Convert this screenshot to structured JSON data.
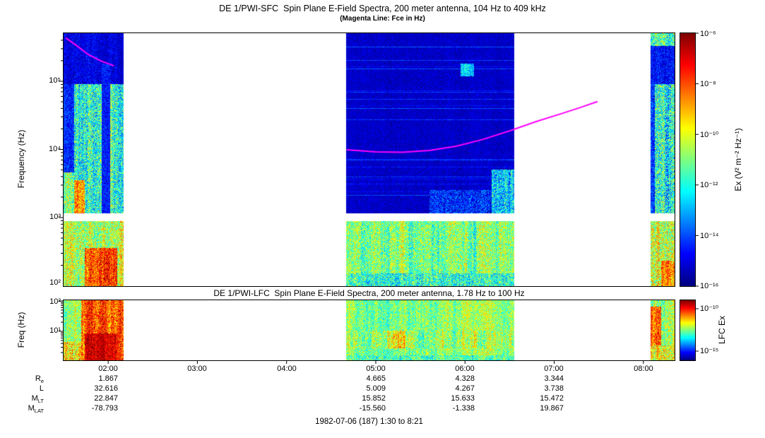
{
  "footer": {
    "text": "1982-07-06 (187) 1:30 to 8:21"
  },
  "xaxis": {
    "ticks": [
      "02:00",
      "03:00",
      "04:00",
      "05:00",
      "06:00",
      "07:00",
      "08:00"
    ],
    "tick_hours": [
      2,
      3,
      4,
      5,
      6,
      7,
      8
    ]
  },
  "ephemeris": {
    "value_hours": [
      2,
      5,
      6,
      7
    ],
    "rows": [
      {
        "label_main": "R",
        "label_sub": "e",
        "values": [
          "1.867",
          "4.665",
          "4.328",
          "3.344"
        ]
      },
      {
        "label_main": "L",
        "label_sub": "",
        "values": [
          "32.616",
          "5.009",
          "4.267",
          "3.738"
        ]
      },
      {
        "label_main": "M",
        "label_sub": "LT",
        "values": [
          "22.847",
          "15.852",
          "15.633",
          "15.472"
        ]
      },
      {
        "label_main": "M",
        "label_sub": "LAT",
        "values": [
          "-78.793",
          "-15.560",
          "-1.338",
          "19.867"
        ]
      }
    ]
  },
  "chart_data": [
    {
      "type": "heatmap",
      "title": "DE 1/PWI-SFC  Spin Plane E-Field Spectra, 200 meter antenna, 104 Hz to 409 kHz",
      "subtitle": "(Magenta Line: Fce in Hz)",
      "ylabel": "Frequency (Hz)",
      "yscale": "log",
      "ylim_hz": [
        100,
        409000
      ],
      "yticks": [
        "10⁵",
        "10⁴",
        "10³",
        "10²"
      ],
      "time_range": [
        "01:30",
        "08:21"
      ],
      "xlim_hours": [
        1.5,
        8.35
      ],
      "data_intervals_hours": [
        [
          1.5,
          2.17
        ],
        [
          4.67,
          6.55
        ],
        [
          8.08,
          8.35
        ]
      ],
      "colorbar": {
        "label": "Ex (V² m⁻² Hz⁻¹)",
        "scale": "log",
        "ticks": [
          "10⁻⁶",
          "10⁻⁸",
          "10⁻¹⁰",
          "10⁻¹²",
          "10⁻¹⁴",
          "10⁻¹⁶"
        ]
      },
      "fce_line": {
        "color": "#ff00ff",
        "width": 2,
        "segments": [
          [
            [
              1.53,
              0.02
            ],
            [
              1.65,
              0.05
            ],
            [
              1.78,
              0.085
            ],
            [
              1.92,
              0.11
            ],
            [
              2.06,
              0.128
            ]
          ],
          [
            [
              4.68,
              0.461
            ],
            [
              5.0,
              0.469
            ],
            [
              5.3,
              0.471
            ],
            [
              5.6,
              0.464
            ],
            [
              5.9,
              0.447
            ],
            [
              6.2,
              0.42
            ],
            [
              6.5,
              0.386
            ],
            [
              6.8,
              0.349
            ],
            [
              7.1,
              0.316
            ],
            [
              7.3,
              0.293
            ],
            [
              7.48,
              0.271
            ]
          ]
        ]
      },
      "patches": [
        {
          "t0": 1.5,
          "t1": 2.17,
          "y0": 0.0,
          "y1": 0.2,
          "v": 0.1,
          "n": 0.08,
          "cv": 0.5
        },
        {
          "t0": 1.5,
          "t1": 2.17,
          "y0": 0.2,
          "y1": 0.713,
          "v": 0.42,
          "n": 0.2,
          "cv": 0.5
        },
        {
          "t0": 1.5,
          "t1": 1.62,
          "y0": 0.2,
          "y1": 0.55,
          "v": 0.16,
          "n": 0.1,
          "cv": 0.3
        },
        {
          "t0": 1.93,
          "t1": 2.02,
          "y0": 0.12,
          "y1": 0.713,
          "v": 0.15,
          "n": 0.09,
          "cv": 0.2
        },
        {
          "t0": 1.62,
          "t1": 1.74,
          "y0": 0.58,
          "y1": 0.713,
          "v": 0.7,
          "n": 0.16,
          "cv": 0.3
        },
        {
          "t0": 1.5,
          "t1": 2.17,
          "y0": 0.743,
          "y1": 1.0,
          "v": 0.55,
          "n": 0.18,
          "cv": 0.4
        },
        {
          "t0": 1.74,
          "t1": 2.1,
          "y0": 0.85,
          "y1": 1.0,
          "v": 0.8,
          "n": 0.15,
          "cv": 0.3
        },
        {
          "t0": 4.67,
          "t1": 6.55,
          "y0": 0.0,
          "y1": 0.713,
          "v": 0.07,
          "n": 0.05,
          "cv": 0.25,
          "rs": 0.1
        },
        {
          "t0": 5.95,
          "t1": 6.1,
          "y0": 0.12,
          "y1": 0.17,
          "v": 0.33,
          "n": 0.12,
          "cv": 0.3
        },
        {
          "t0": 5.6,
          "t1": 6.55,
          "y0": 0.62,
          "y1": 0.713,
          "v": 0.16,
          "n": 0.14,
          "cv": 0.5
        },
        {
          "t0": 6.3,
          "t1": 6.55,
          "y0": 0.54,
          "y1": 0.713,
          "v": 0.34,
          "n": 0.18,
          "cv": 0.5
        },
        {
          "t0": 4.67,
          "t1": 6.55,
          "y0": 0.743,
          "y1": 1.0,
          "v": 0.5,
          "n": 0.16,
          "cv": 0.45
        },
        {
          "t0": 4.67,
          "t1": 6.55,
          "y0": 0.95,
          "y1": 1.0,
          "v": 0.42,
          "n": 0.18,
          "cv": 0.3
        },
        {
          "t0": 8.08,
          "t1": 8.35,
          "y0": 0.0,
          "y1": 0.05,
          "v": 0.45,
          "n": 0.2,
          "cv": 0.4
        },
        {
          "t0": 8.08,
          "t1": 8.35,
          "y0": 0.05,
          "y1": 0.2,
          "v": 0.13,
          "n": 0.1,
          "cv": 0.4
        },
        {
          "t0": 8.08,
          "t1": 8.35,
          "y0": 0.2,
          "y1": 0.713,
          "v": 0.4,
          "n": 0.22,
          "cv": 0.6
        },
        {
          "t0": 8.08,
          "t1": 8.13,
          "y0": 0.2,
          "y1": 0.713,
          "v": 0.2,
          "n": 0.12,
          "cv": 0.3
        },
        {
          "t0": 8.08,
          "t1": 8.35,
          "y0": 0.743,
          "y1": 1.0,
          "v": 0.55,
          "n": 0.2,
          "cv": 0.4
        },
        {
          "t0": 8.2,
          "t1": 8.35,
          "y0": 0.9,
          "y1": 1.0,
          "v": 0.75,
          "n": 0.15,
          "cv": 0.3
        },
        {
          "t0": 1.5,
          "t1": 8.35,
          "y0": 0.713,
          "y1": 0.743,
          "white": true
        }
      ]
    },
    {
      "type": "heatmap",
      "title": "DE 1/PWI-LFC  Spin Plane E-Field Spectra, 200 meter antenna, 1.78 Hz to 100 Hz",
      "ylabel": "Freq (Hz)",
      "yscale": "log",
      "ylim_hz": [
        1.78,
        100
      ],
      "yticks": [
        "10²",
        "10¹"
      ],
      "data_intervals_hours": [
        [
          1.5,
          2.17
        ],
        [
          4.67,
          6.55
        ],
        [
          8.08,
          8.35
        ]
      ],
      "colorbar": {
        "label": "LFC Ex",
        "scale": "log",
        "ticks": [
          "10⁻¹⁰",
          "10⁻¹⁵"
        ]
      },
      "patches": [
        {
          "t0": 1.5,
          "t1": 2.17,
          "y0": 0.0,
          "y1": 1.0,
          "v": 0.5,
          "n": 0.15,
          "cv": 0.4
        },
        {
          "t0": 1.5,
          "t1": 2.17,
          "y0": 0.7,
          "y1": 1.0,
          "v": 0.62,
          "n": 0.18,
          "cv": 0.3
        },
        {
          "t0": 1.7,
          "t1": 2.17,
          "y0": 0.0,
          "y1": 1.0,
          "v": 0.8,
          "n": 0.15,
          "cv": 0.25
        },
        {
          "t0": 1.74,
          "t1": 2.12,
          "y0": 0.55,
          "y1": 1.0,
          "v": 0.9,
          "n": 0.1,
          "cv": 0.15
        },
        {
          "t0": 4.67,
          "t1": 6.55,
          "y0": 0.0,
          "y1": 1.0,
          "v": 0.5,
          "n": 0.13,
          "cv": 0.3
        },
        {
          "t0": 4.67,
          "t1": 6.55,
          "y0": 0.5,
          "y1": 0.8,
          "v": 0.55,
          "n": 0.15,
          "cv": 0.4
        },
        {
          "t0": 4.67,
          "t1": 6.55,
          "y0": 0.92,
          "y1": 1.0,
          "v": 0.45,
          "n": 0.15,
          "cv": 0.3
        },
        {
          "t0": 8.08,
          "t1": 8.35,
          "y0": 0.0,
          "y1": 1.0,
          "v": 0.52,
          "n": 0.16,
          "cv": 0.4
        },
        {
          "t0": 8.08,
          "t1": 8.2,
          "y0": 0.1,
          "y1": 1.0,
          "v": 0.78,
          "n": 0.15,
          "cv": 0.3
        },
        {
          "t0": 8.08,
          "t1": 8.35,
          "y0": 0.75,
          "y1": 1.0,
          "v": 0.65,
          "n": 0.18,
          "cv": 0.3
        }
      ]
    }
  ]
}
